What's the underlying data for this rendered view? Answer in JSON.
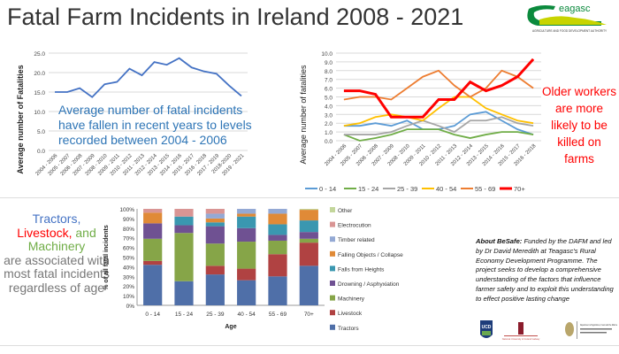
{
  "title": "Fatal Farm Incidents in Ireland 2008 - 2021",
  "logo": {
    "text": "Teagasc",
    "subtitle": "Agriculture and Food Development Authority"
  },
  "chart_data": [
    {
      "type": "line",
      "ylabel": "Average number of Fatalities",
      "ylim": [
        0,
        25
      ],
      "yticks": [
        "0.0",
        "5.0",
        "10.0",
        "15.0",
        "20.0",
        "25.0"
      ],
      "grid": true,
      "categories": [
        "2004 - 2006",
        "2005 - 2007",
        "2006 - 2008",
        "2007 - 2009",
        "2008 - 2010",
        "2009 - 2011",
        "2010 - 2012",
        "2011 - 2013",
        "2012 - 2014",
        "2013 - 2015",
        "2014 - 2016",
        "2015 - 2017",
        "2016 - 2018",
        "2017 - 2019",
        "2018-2020",
        "2019 - 2021"
      ],
      "values": [
        15,
        15,
        16,
        13.7,
        17,
        17.6,
        21,
        19.3,
        22.7,
        22,
        23.7,
        21.3,
        20.3,
        19.7,
        16.7,
        14
      ],
      "annotation": "Average number of fatal incidents have fallen in recent years to levels recorded between 2004 - 2006",
      "color": "#4472c4"
    },
    {
      "type": "line",
      "ylabel": "Average number of fatalities",
      "ylim": [
        0,
        10
      ],
      "yticks": [
        "0.0",
        "1.0",
        "2.0",
        "3.0",
        "4.0",
        "5.0",
        "6.0",
        "7.0",
        "8.0",
        "9.0",
        "10.0"
      ],
      "grid": true,
      "legend": "bottom",
      "categories": [
        "2004 - 2006",
        "2005 - 2007",
        "2006 - 2008",
        "2007 - 2009",
        "2008 - 2010",
        "2009 - 2011",
        "2010 - 2012",
        "2011 - 2013",
        "2012 - 2014",
        "2013 - 2015",
        "2014 - 2016",
        "2015 - 2017",
        "2016 - 2018"
      ],
      "series": [
        {
          "name": "0 - 14",
          "color": "#5b9bd5",
          "values": [
            1.7,
            1.7,
            2.0,
            1.7,
            2.3,
            1.3,
            1.3,
            1.7,
            3.0,
            3.3,
            2.3,
            1.3,
            0.7
          ]
        },
        {
          "name": "15 - 24",
          "color": "#70ad47",
          "values": [
            0.7,
            0,
            0.3,
            0.7,
            1.3,
            1.3,
            1.3,
            0.7,
            0.3,
            0.7,
            1.0,
            1.0,
            0.7
          ]
        },
        {
          "name": "25 - 39",
          "color": "#a5a5a5",
          "values": [
            0.7,
            0.7,
            0.7,
            1.0,
            1.7,
            2.3,
            1.7,
            1.0,
            2.3,
            2.3,
            2.7,
            2.0,
            1.7
          ]
        },
        {
          "name": "40 - 54",
          "color": "#ffc000",
          "values": [
            1.7,
            2.0,
            2.7,
            3.0,
            2.7,
            2.3,
            3.7,
            5.0,
            5.0,
            3.7,
            3.0,
            2.3,
            2.0
          ]
        },
        {
          "name": "55 - 69",
          "color": "#ed7d31",
          "values": [
            4.7,
            5.0,
            5.0,
            4.7,
            6.0,
            7.3,
            8.0,
            6.3,
            5.0,
            6.0,
            8.0,
            7.3,
            6.0
          ]
        },
        {
          "name": "70+",
          "color": "#ff0000",
          "values": [
            5.7,
            5.7,
            5.3,
            2.7,
            2.7,
            2.7,
            4.7,
            4.7,
            6.7,
            5.7,
            6.3,
            7.3,
            9.3
          ]
        }
      ],
      "annotation": "Older workers are more likely to be killed on farms"
    },
    {
      "type": "bar",
      "stacked": true,
      "xlabel": "Age",
      "ylabel": "% of all fatal incidents",
      "ylim": [
        0,
        100
      ],
      "yticks": [
        "0%",
        "10%",
        "20%",
        "30%",
        "40%",
        "50%",
        "60%",
        "70%",
        "80%",
        "90%",
        "100%"
      ],
      "legend": "right",
      "categories": [
        "0 - 14",
        "15 - 24",
        "25 - 39",
        "40 - 54",
        "55 - 69",
        "70+"
      ],
      "series": [
        {
          "name": "Tractors",
          "color": "#4f6fa8",
          "values": [
            42,
            25,
            32,
            26,
            30,
            41
          ]
        },
        {
          "name": "Livestock",
          "color": "#b04242",
          "values": [
            4,
            0,
            9,
            12,
            23,
            24
          ]
        },
        {
          "name": "Machinery",
          "color": "#86a548",
          "values": [
            23,
            50,
            23,
            28,
            14,
            4
          ]
        },
        {
          "name": "Drowning / Asphyxiation",
          "color": "#6f5192",
          "values": [
            16,
            8,
            18,
            14,
            6,
            7
          ]
        },
        {
          "name": "Falls from Heights",
          "color": "#3a97b0",
          "values": [
            0,
            9,
            4,
            12,
            11,
            12
          ]
        },
        {
          "name": "Falling Objects / Collapse",
          "color": "#e08a37",
          "values": [
            11,
            0,
            4,
            3,
            11,
            11
          ]
        },
        {
          "name": "Timber related",
          "color": "#94a9d4",
          "values": [
            0,
            0,
            5,
            5,
            5,
            0
          ]
        },
        {
          "name": "Electrocution",
          "color": "#d99594",
          "values": [
            4,
            8,
            5,
            0,
            0,
            0
          ]
        },
        {
          "name": "Other",
          "color": "#c3d69b",
          "values": [
            0,
            0,
            0,
            0,
            0,
            1
          ]
        }
      ]
    }
  ],
  "tractors_note": {
    "tractors": "Tractors,",
    "livestock": "Livestock,",
    "and": " and",
    "machinery": "Machinery",
    "rest": "are associated with most fatal incidents regardless of age"
  },
  "about": {
    "label": "About BeSafe:",
    "text": " Funded by the DAFM and led by Dr David Meredith at Teagasc's Rural Economy Development Programme. The project seeks to develop a comprehensive understanding of the factors that influence farmer safety and to exploit this understanding to effect positive lasting change"
  },
  "partner_logos": [
    "UCD",
    "National University of Ireland Galway",
    "Department of Agriculture, Food and the Marine"
  ]
}
